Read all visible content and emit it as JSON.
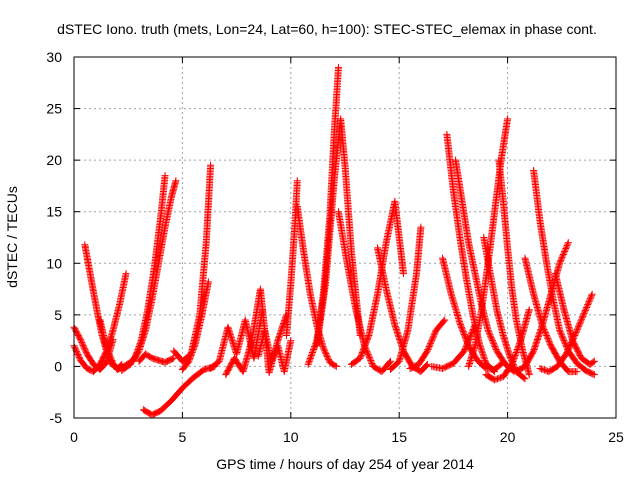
{
  "chart_data": {
    "type": "scatter",
    "title": "dSTEC Iono. truth (mets, Lon=24, Lat=60, h=100): STEC-STEC_elemax in phase cont.",
    "xlabel": "GPS time / hours of day 254 of year 2014",
    "ylabel": "dSTEC  / TECUs",
    "xlim": [
      0,
      25
    ],
    "ylim": [
      -5,
      30
    ],
    "xticks": [
      0,
      5,
      10,
      15,
      20,
      25
    ],
    "yticks": [
      -5,
      0,
      5,
      10,
      15,
      20,
      25,
      30
    ],
    "grid": true,
    "marker": "+",
    "color": "#ff0000",
    "arcs": [
      {
        "x": [
          0.0,
          0.3,
          0.6,
          0.9,
          1.2,
          1.5,
          1.8
        ],
        "y": [
          3.8,
          2.6,
          1.2,
          0.2,
          -0.3,
          0.4,
          2.6
        ]
      },
      {
        "x": [
          0.5,
          0.7,
          0.9,
          1.1,
          1.3,
          1.5,
          1.7,
          2.0,
          2.3,
          2.6
        ],
        "y": [
          11.8,
          9.5,
          7.2,
          5.0,
          3.0,
          1.5,
          0.3,
          -0.2,
          0.0,
          0.4
        ]
      },
      {
        "x": [
          0.0,
          0.3,
          0.6,
          0.9,
          1.2,
          1.5,
          1.8,
          2.1,
          2.4
        ],
        "y": [
          2.0,
          0.6,
          -0.2,
          -0.5,
          0.2,
          1.5,
          3.5,
          6.0,
          9.0
        ]
      },
      {
        "x": [
          1.2,
          1.5,
          1.8,
          2.0,
          2.2
        ],
        "y": [
          4.5,
          1.8,
          0.3,
          -0.3,
          0.2
        ]
      },
      {
        "x": [
          2.0,
          2.4,
          2.8,
          3.1,
          3.4,
          3.7,
          4.0,
          4.2
        ],
        "y": [
          -0.3,
          0.0,
          0.8,
          2.5,
          5.5,
          9.5,
          14.5,
          18.5
        ]
      },
      {
        "x": [
          2.2,
          2.6,
          3.0,
          3.3,
          3.6,
          3.9,
          4.2,
          4.5,
          4.7
        ],
        "y": [
          -0.4,
          0.2,
          1.5,
          3.5,
          6.5,
          10.0,
          13.5,
          16.5,
          18.0
        ]
      },
      {
        "x": [
          3.0,
          3.3,
          3.6,
          3.9,
          4.2,
          4.6
        ],
        "y": [
          0.5,
          1.2,
          0.8,
          0.6,
          0.4,
          0.8
        ]
      },
      {
        "x": [
          3.2,
          3.6,
          4.0,
          4.5,
          5.0,
          5.5,
          6.0,
          6.5
        ],
        "y": [
          -4.2,
          -4.7,
          -4.3,
          -3.3,
          -2.1,
          -1.1,
          -0.3,
          0.0
        ]
      },
      {
        "x": [
          4.6,
          5.0,
          5.4,
          5.8,
          6.1,
          6.3
        ],
        "y": [
          1.5,
          0.5,
          1.2,
          5.0,
          12.0,
          19.5
        ]
      },
      {
        "x": [
          5.0,
          5.3,
          5.6,
          5.9,
          6.2
        ],
        "y": [
          -0.3,
          0.5,
          2.2,
          5.0,
          8.2
        ]
      },
      {
        "x": [
          6.3,
          6.7,
          7.1,
          7.5,
          7.9,
          8.3,
          8.7
        ],
        "y": [
          -0.2,
          0.5,
          3.8,
          1.2,
          4.5,
          0.8,
          5.5
        ]
      },
      {
        "x": [
          7.0,
          7.4,
          7.8,
          8.2,
          8.6,
          9.0,
          9.4,
          9.8
        ],
        "y": [
          -0.8,
          0.8,
          -0.5,
          2.5,
          7.5,
          -0.6,
          2.5,
          5.0
        ]
      },
      {
        "x": [
          8.5,
          8.8,
          9.1,
          9.4,
          9.7,
          10.0
        ],
        "y": [
          1.0,
          3.5,
          0.5,
          2.0,
          -0.5,
          2.5
        ]
      },
      {
        "x": [
          9.8,
          10.0,
          10.2,
          10.3
        ],
        "y": [
          3.0,
          8.0,
          14.0,
          18.0
        ]
      },
      {
        "x": [
          10.3,
          10.6,
          10.9,
          11.2,
          11.5,
          11.8,
          12.1
        ],
        "y": [
          15.5,
          11.0,
          7.0,
          4.0,
          1.8,
          0.4,
          0.0
        ]
      },
      {
        "x": [
          10.8,
          11.2,
          11.5,
          11.8,
          12.0,
          12.2
        ],
        "y": [
          0.2,
          2.5,
          7.0,
          14.5,
          22.5,
          29.0
        ]
      },
      {
        "x": [
          11.2,
          11.6,
          12.0,
          12.3,
          12.5,
          12.8,
          13.2
        ],
        "y": [
          2.0,
          8.0,
          18.0,
          24.0,
          19.5,
          11.0,
          3.0
        ]
      },
      {
        "x": [
          12.2,
          12.6,
          13.0,
          13.4,
          13.8,
          14.2,
          14.6
        ],
        "y": [
          15.0,
          10.0,
          5.5,
          2.0,
          0.0,
          -0.5,
          0.5
        ]
      },
      {
        "x": [
          12.8,
          13.2,
          13.6,
          14.0,
          14.4,
          14.8,
          15.2
        ],
        "y": [
          0.2,
          0.8,
          3.0,
          7.0,
          12.0,
          16.0,
          9.0
        ]
      },
      {
        "x": [
          14.0,
          14.4,
          14.8,
          15.2,
          15.6,
          16.0,
          16.3
        ],
        "y": [
          11.5,
          7.5,
          4.0,
          1.5,
          0.0,
          -0.5,
          0.2
        ]
      },
      {
        "x": [
          14.6,
          15.0,
          15.4,
          15.8,
          16.0
        ],
        "y": [
          -0.3,
          0.5,
          3.5,
          9.0,
          13.5
        ]
      },
      {
        "x": [
          15.5,
          15.9,
          16.3,
          16.7,
          17.1
        ],
        "y": [
          -0.2,
          0.2,
          1.5,
          3.5,
          4.5
        ]
      },
      {
        "x": [
          16.5,
          17.0,
          17.5,
          18.0,
          18.5
        ],
        "y": [
          0.0,
          -0.2,
          0.3,
          1.5,
          4.0
        ]
      },
      {
        "x": [
          17.2,
          17.5,
          17.8,
          18.1,
          18.4,
          18.7,
          19.0,
          19.4
        ],
        "y": [
          22.5,
          17.0,
          12.5,
          8.5,
          5.0,
          2.2,
          0.3,
          -0.5
        ]
      },
      {
        "x": [
          17.0,
          17.4,
          17.8,
          18.2,
          18.6,
          19.0,
          19.4,
          19.8
        ],
        "y": [
          10.5,
          7.0,
          4.2,
          2.0,
          0.6,
          -0.2,
          -0.3,
          0.4
        ]
      },
      {
        "x": [
          17.6,
          17.9,
          18.2,
          18.5,
          18.8,
          19.1,
          19.5,
          19.9,
          20.3
        ],
        "y": [
          20.0,
          16.0,
          12.0,
          9.0,
          6.0,
          3.5,
          1.5,
          0.2,
          -0.5
        ]
      },
      {
        "x": [
          18.2,
          18.5,
          18.8,
          19.1,
          19.4,
          19.7,
          20.0
        ],
        "y": [
          0.0,
          2.0,
          5.5,
          10.0,
          15.0,
          20.0,
          24.0
        ]
      },
      {
        "x": [
          18.9,
          19.2,
          19.5,
          19.8,
          20.1,
          20.4,
          20.8
        ],
        "y": [
          12.5,
          9.0,
          5.5,
          3.0,
          1.0,
          -0.5,
          -1.2
        ]
      },
      {
        "x": [
          19.6,
          19.8,
          20.0,
          20.2,
          20.4,
          20.7,
          21.0
        ],
        "y": [
          20.0,
          16.0,
          11.5,
          7.5,
          4.5,
          1.5,
          -0.8
        ]
      },
      {
        "x": [
          19.0,
          19.4,
          19.8,
          20.2,
          20.6,
          21.0
        ],
        "y": [
          -0.8,
          -1.3,
          -1.0,
          0.2,
          2.5,
          5.5
        ]
      },
      {
        "x": [
          20.8,
          21.2,
          21.6,
          22.0,
          22.4,
          22.8,
          23.2
        ],
        "y": [
          10.5,
          7.0,
          4.0,
          2.0,
          0.5,
          -0.5,
          -0.5
        ]
      },
      {
        "x": [
          21.2,
          21.5,
          21.8,
          22.1,
          22.4,
          22.8,
          23.2,
          23.6,
          24.0
        ],
        "y": [
          19.0,
          14.0,
          10.0,
          6.5,
          3.5,
          1.5,
          0.3,
          -0.4,
          -0.8
        ]
      },
      {
        "x": [
          20.4,
          20.8,
          21.2,
          21.6,
          22.0,
          22.4,
          22.8
        ],
        "y": [
          -0.5,
          0.0,
          1.5,
          4.0,
          7.0,
          10.0,
          12.0
        ]
      },
      {
        "x": [
          21.5,
          21.9,
          22.3,
          22.7,
          23.1,
          23.5,
          23.9
        ],
        "y": [
          -0.2,
          -0.5,
          0.0,
          1.2,
          3.0,
          5.0,
          7.0
        ]
      },
      {
        "x": [
          22.2,
          22.6,
          23.0,
          23.4,
          23.8,
          24.0
        ],
        "y": [
          9.0,
          5.5,
          2.5,
          0.8,
          0.2,
          0.5
        ]
      }
    ]
  }
}
